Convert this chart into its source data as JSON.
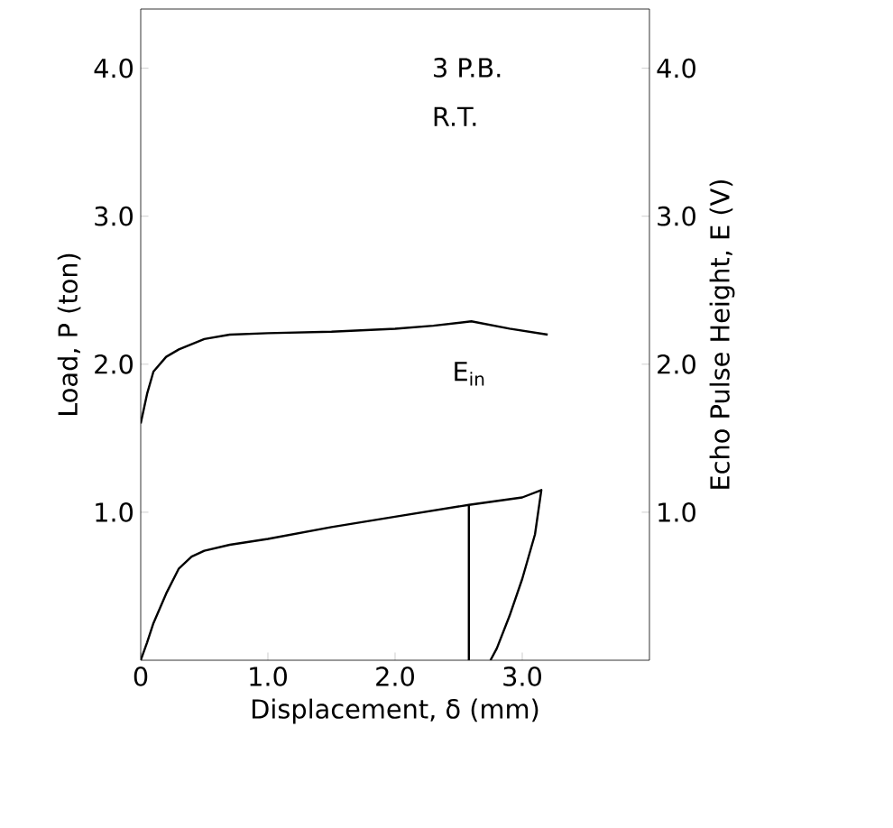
{
  "chart_data": {
    "type": "line",
    "xlabel": "Displacement, δ (mm)",
    "ylabel": "Load, P (ton)",
    "y2label": "Echo Pulse Height, E (V)",
    "xlim": [
      0,
      4.0
    ],
    "xticks": [
      {
        "value": 0,
        "label": "0"
      },
      {
        "value": 1,
        "label": "1.0"
      },
      {
        "value": 2,
        "label": "2.0"
      },
      {
        "value": 3,
        "label": "3.0"
      }
    ],
    "ylim": [
      0,
      4.4
    ],
    "yticks": [
      {
        "value": 1,
        "label": "1.0"
      },
      {
        "value": 2,
        "label": "2.0"
      },
      {
        "value": 3,
        "label": "3.0"
      },
      {
        "value": 4,
        "label": "4.0"
      }
    ],
    "y2lim": [
      0,
      4.4
    ],
    "y2ticks": [
      {
        "value": 1,
        "label": "1.0"
      },
      {
        "value": 2,
        "label": "2.0"
      },
      {
        "value": 3,
        "label": "3.0"
      },
      {
        "value": 4,
        "label": "4.0"
      }
    ],
    "series": [
      {
        "color": "#000000",
        "x": [
          0,
          0.05,
          0.1,
          0.2,
          0.3,
          0.4,
          0.5,
          0.7,
          1.0,
          1.5,
          2.0,
          2.58,
          3.0,
          3.15,
          3.1,
          3.0,
          2.9,
          2.8,
          2.75
        ],
        "values": [
          0,
          0.12,
          0.25,
          0.45,
          0.62,
          0.7,
          0.74,
          0.78,
          0.82,
          0.9,
          0.97,
          1.05,
          1.1,
          1.15,
          0.85,
          0.55,
          0.3,
          0.08,
          0
        ]
      },
      {
        "color": "#000000",
        "x": [
          2.58,
          2.58
        ],
        "values": [
          0,
          1.05
        ]
      },
      {
        "color": "#000000",
        "axis": "y2",
        "x": [
          0,
          0.05,
          0.1,
          0.2,
          0.3,
          0.5,
          0.7,
          1.0,
          1.5,
          2.0,
          2.3,
          2.6,
          2.9,
          3.2
        ],
        "values": [
          1.6,
          1.8,
          1.95,
          2.05,
          2.1,
          2.17,
          2.2,
          2.21,
          2.22,
          2.24,
          2.26,
          2.29,
          2.24,
          2.2
        ]
      }
    ],
    "annotations": [
      "3 P.B.",
      "R.T.",
      "E$_{in}$"
    ],
    "grid": false,
    "legend": false,
    "marker": "none",
    "line_style": "solid"
  }
}
